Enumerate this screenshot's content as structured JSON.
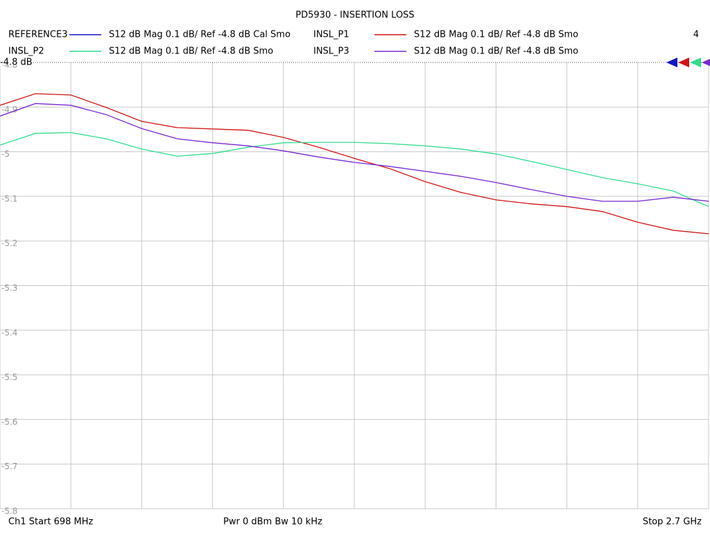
{
  "chart_data": {
    "type": "line",
    "title": "PD5930 - INSERTION LOSS",
    "reference_label": "-4.8 dB",
    "active_trace": 4,
    "footer_start": "Ch1  Start  698 MHz",
    "footer_power": "Pwr  0 dBm  Bw  10 kHz",
    "footer_stop": "Stop  2.7 GHz",
    "xlim": [
      698,
      2700
    ],
    "ylim": [
      -5.8,
      -4.8
    ],
    "yticks": [
      -4.8,
      -4.9,
      -5,
      -5.1,
      -5.2,
      -5.3,
      -5.4,
      -5.5,
      -5.6,
      -5.7,
      -5.8
    ],
    "grid": true,
    "x": [
      698,
      798.1,
      898.2,
      998.3,
      1098.4,
      1198.5,
      1298.6,
      1398.7,
      1498.8,
      1598.9,
      1699,
      1799.1,
      1899.2,
      1999.3,
      2099.4,
      2199.5,
      2299.6,
      2399.7,
      2499.8,
      2599.9,
      2700
    ],
    "series": [
      {
        "name": "REFERENCE3",
        "trace": "S12  dB Mag  0.1 dB/ Ref -4.8 dB  Cal Smo",
        "color": "#1414c8",
        "values": [
          null,
          null,
          null,
          null,
          null,
          null,
          null,
          null,
          null,
          null,
          null,
          null,
          null,
          null,
          null,
          null,
          null,
          null,
          null,
          null,
          null
        ]
      },
      {
        "name": "INSL_P1",
        "trace": "S12  dB Mag  0.1 dB/ Ref -4.8 dB  Smo",
        "color": "#d21414",
        "values": [
          -4.896,
          -4.87,
          -4.873,
          -4.901,
          -4.932,
          -4.946,
          -4.949,
          -4.952,
          -4.968,
          -4.99,
          -5.015,
          -5.038,
          -5.067,
          -5.091,
          -5.108,
          -5.117,
          -5.123,
          -5.134,
          -5.158,
          -5.176,
          -5.184
        ]
      },
      {
        "name": "INSL_P2",
        "trace": "S12  dB Mag  0.1 dB/ Ref -4.8 dB  Smo",
        "color": "#32dc8c",
        "values": [
          -4.985,
          -4.959,
          -4.957,
          -4.971,
          -4.994,
          -5.01,
          -5.004,
          -4.99,
          -4.98,
          -4.979,
          -4.979,
          -4.982,
          -4.987,
          -4.994,
          -5.005,
          -5.022,
          -5.04,
          -5.058,
          -5.072,
          -5.088,
          -5.123
        ]
      },
      {
        "name": "INSL_P3",
        "trace": "S12  dB Mag  0.1 dB/ Ref -4.8 dB  Smo",
        "color": "#7828d2",
        "values": [
          -4.92,
          -4.892,
          -4.896,
          -4.917,
          -4.948,
          -4.971,
          -4.98,
          -4.987,
          -4.998,
          -5.012,
          -5.024,
          -5.033,
          -5.044,
          -5.055,
          -5.069,
          -5.085,
          -5.1,
          -5.111,
          -5.111,
          -5.102,
          -5.111
        ]
      }
    ]
  }
}
